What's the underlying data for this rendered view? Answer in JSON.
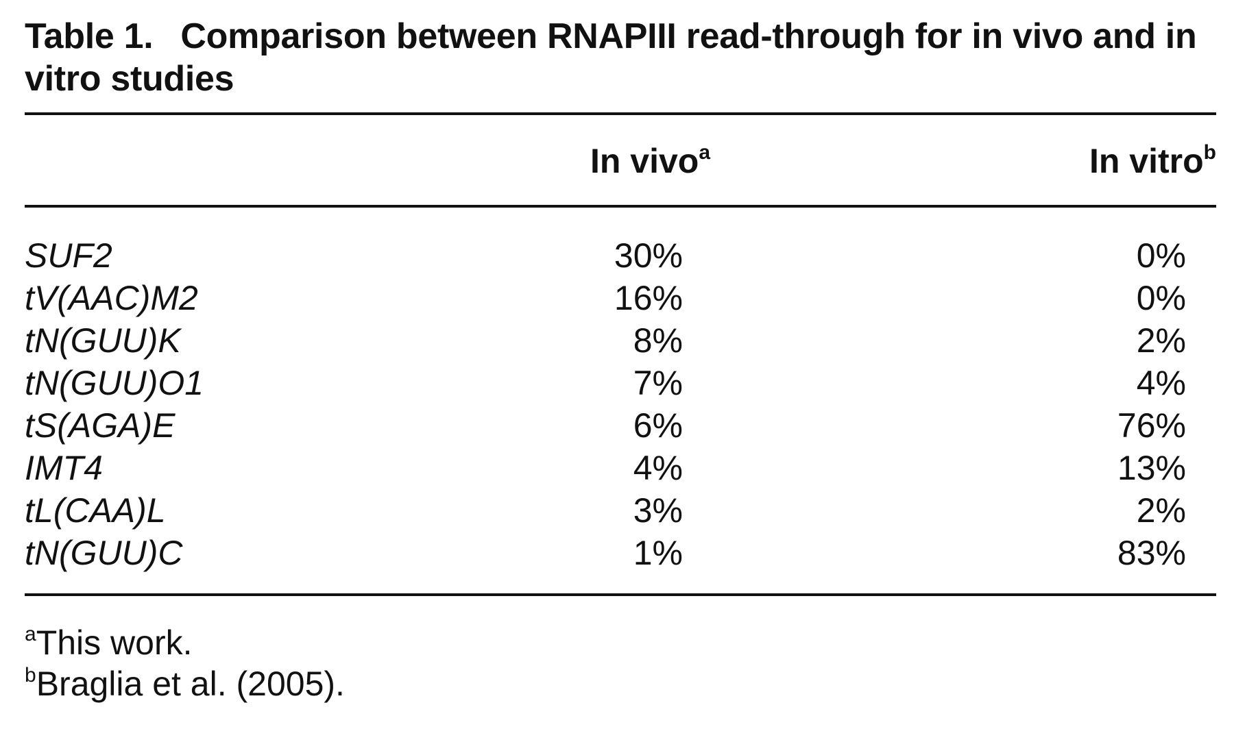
{
  "table": {
    "label": "Table 1.",
    "caption": "Comparison between RNAPIII read-through for in vivo and in vitro studies",
    "columns": [
      {
        "label": "In vivo",
        "note": "a"
      },
      {
        "label": "In vitro",
        "note": "b"
      }
    ],
    "rows": [
      {
        "gene": "SUF2",
        "in_vivo": "30%",
        "in_vitro": "0%"
      },
      {
        "gene": "tV(AAC)M2",
        "in_vivo": "16%",
        "in_vitro": "0%"
      },
      {
        "gene": "tN(GUU)K",
        "in_vivo": "8%",
        "in_vitro": "2%"
      },
      {
        "gene": "tN(GUU)O1",
        "in_vivo": "7%",
        "in_vitro": "4%"
      },
      {
        "gene": "tS(AGA)E",
        "in_vivo": "6%",
        "in_vitro": "76%"
      },
      {
        "gene": "IMT4",
        "in_vivo": "4%",
        "in_vitro": "13%"
      },
      {
        "gene": "tL(CAA)L",
        "in_vivo": "3%",
        "in_vitro": "2%"
      },
      {
        "gene": "tN(GUU)C",
        "in_vivo": "1%",
        "in_vitro": "83%"
      }
    ],
    "footnotes": [
      {
        "mark": "a",
        "text": "This work."
      },
      {
        "mark": "b",
        "text": "Braglia et al. (2005)."
      }
    ]
  }
}
